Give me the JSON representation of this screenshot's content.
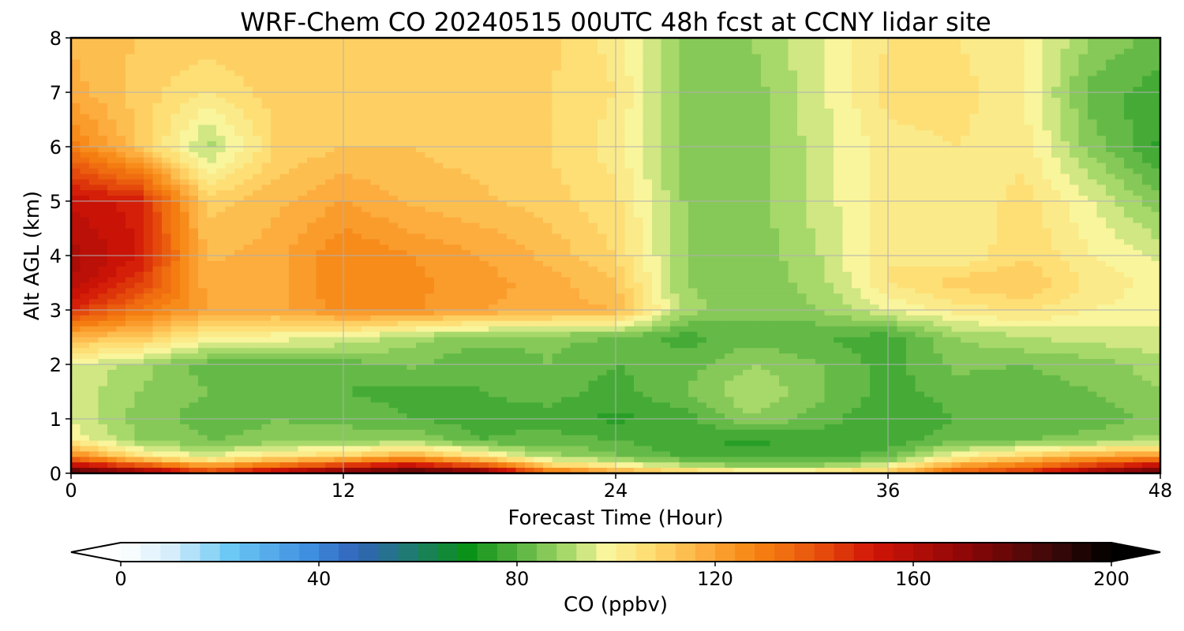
{
  "chart_data": {
    "type": "heatmap",
    "title": "WRF-Chem CO  20240515 00UTC 48h fcst at CCNY lidar site",
    "xlabel": "Forecast Time (Hour)",
    "ylabel": "Alt AGL (km)",
    "xlim": [
      0,
      48
    ],
    "ylim": [
      0,
      8
    ],
    "x_ticks": [
      "0",
      "12",
      "24",
      "36",
      "48"
    ],
    "y_ticks": [
      "0",
      "1",
      "2",
      "3",
      "4",
      "5",
      "6",
      "7",
      "8"
    ],
    "grid": true,
    "x_hours": [
      0,
      3,
      6,
      9,
      12,
      15,
      18,
      21,
      24,
      27,
      30,
      33,
      36,
      39,
      42,
      45,
      48
    ],
    "y_km": [
      0,
      0.1,
      0.3,
      0.6,
      1,
      1.5,
      2,
      2.5,
      3,
      3.5,
      4,
      5,
      6,
      7,
      8
    ],
    "z_ppbv": [
      [
        190,
        175,
        150,
        165,
        180,
        190,
        185,
        140,
        125,
        115,
        108,
        110,
        115,
        140,
        150,
        170,
        185
      ],
      [
        165,
        150,
        128,
        140,
        155,
        165,
        150,
        115,
        105,
        95,
        88,
        90,
        100,
        125,
        135,
        150,
        165
      ],
      [
        130,
        105,
        95,
        105,
        110,
        120,
        105,
        90,
        85,
        80,
        78,
        78,
        82,
        100,
        110,
        120,
        125
      ],
      [
        100,
        88,
        84,
        85,
        86,
        88,
        80,
        82,
        80,
        76,
        75,
        77,
        78,
        82,
        84,
        86,
        90
      ],
      [
        95,
        86,
        82,
        84,
        83,
        80,
        78,
        78,
        75,
        78,
        88,
        82,
        76,
        80,
        80,
        82,
        85
      ],
      [
        95,
        88,
        84,
        82,
        80,
        78,
        80,
        82,
        78,
        84,
        92,
        85,
        78,
        82,
        82,
        84,
        88
      ],
      [
        96,
        90,
        82,
        82,
        82,
        85,
        80,
        84,
        80,
        82,
        88,
        84,
        78,
        85,
        84,
        86,
        90
      ],
      [
        115,
        112,
        100,
        98,
        96,
        90,
        86,
        85,
        84,
        78,
        82,
        80,
        78,
        88,
        92,
        94,
        95
      ],
      [
        148,
        132,
        120,
        118,
        126,
        125,
        120,
        118,
        116,
        90,
        85,
        88,
        96,
        102,
        105,
        100,
        98
      ],
      [
        160,
        145,
        118,
        118,
        128,
        125,
        122,
        118,
        112,
        88,
        85,
        90,
        104,
        110,
        112,
        103,
        98
      ],
      [
        162,
        152,
        115,
        118,
        128,
        124,
        120,
        115,
        108,
        88,
        85,
        92,
        104,
        100,
        108,
        100,
        95
      ],
      [
        155,
        150,
        110,
        115,
        120,
        115,
        113,
        110,
        105,
        88,
        86,
        94,
        102,
        100,
        106,
        96,
        85
      ],
      [
        130,
        112,
        90,
        108,
        112,
        112,
        110,
        108,
        102,
        86,
        86,
        94,
        102,
        104,
        102,
        86,
        75
      ],
      [
        118,
        110,
        104,
        110,
        108,
        108,
        110,
        108,
        104,
        86,
        86,
        95,
        106,
        106,
        100,
        82,
        78
      ],
      [
        115,
        112,
        110,
        112,
        110,
        108,
        110,
        110,
        102,
        86,
        88,
        96,
        104,
        104,
        100,
        88,
        82
      ]
    ],
    "colorbar": {
      "label": "CO  (ppbv)",
      "min": 0,
      "max": 200,
      "ticks": [
        "0",
        "40",
        "80",
        "120",
        "160",
        "200"
      ],
      "extend": "both",
      "stops": [
        {
          "v": 0,
          "color": "#ffffff"
        },
        {
          "v": 10,
          "color": "#d6eefb"
        },
        {
          "v": 22,
          "color": "#6cc8f4"
        },
        {
          "v": 38,
          "color": "#3f8fe0"
        },
        {
          "v": 48,
          "color": "#3063b8"
        },
        {
          "v": 58,
          "color": "#1f7a74"
        },
        {
          "v": 70,
          "color": "#0a9118"
        },
        {
          "v": 80,
          "color": "#54b23e"
        },
        {
          "v": 90,
          "color": "#a7d86a"
        },
        {
          "v": 98,
          "color": "#f9f59c"
        },
        {
          "v": 108,
          "color": "#fed96c"
        },
        {
          "v": 118,
          "color": "#fdac3e"
        },
        {
          "v": 128,
          "color": "#f68412"
        },
        {
          "v": 140,
          "color": "#e9550d"
        },
        {
          "v": 152,
          "color": "#d11407"
        },
        {
          "v": 170,
          "color": "#8f0707"
        },
        {
          "v": 188,
          "color": "#3d0808"
        },
        {
          "v": 200,
          "color": "#000000"
        }
      ]
    }
  }
}
